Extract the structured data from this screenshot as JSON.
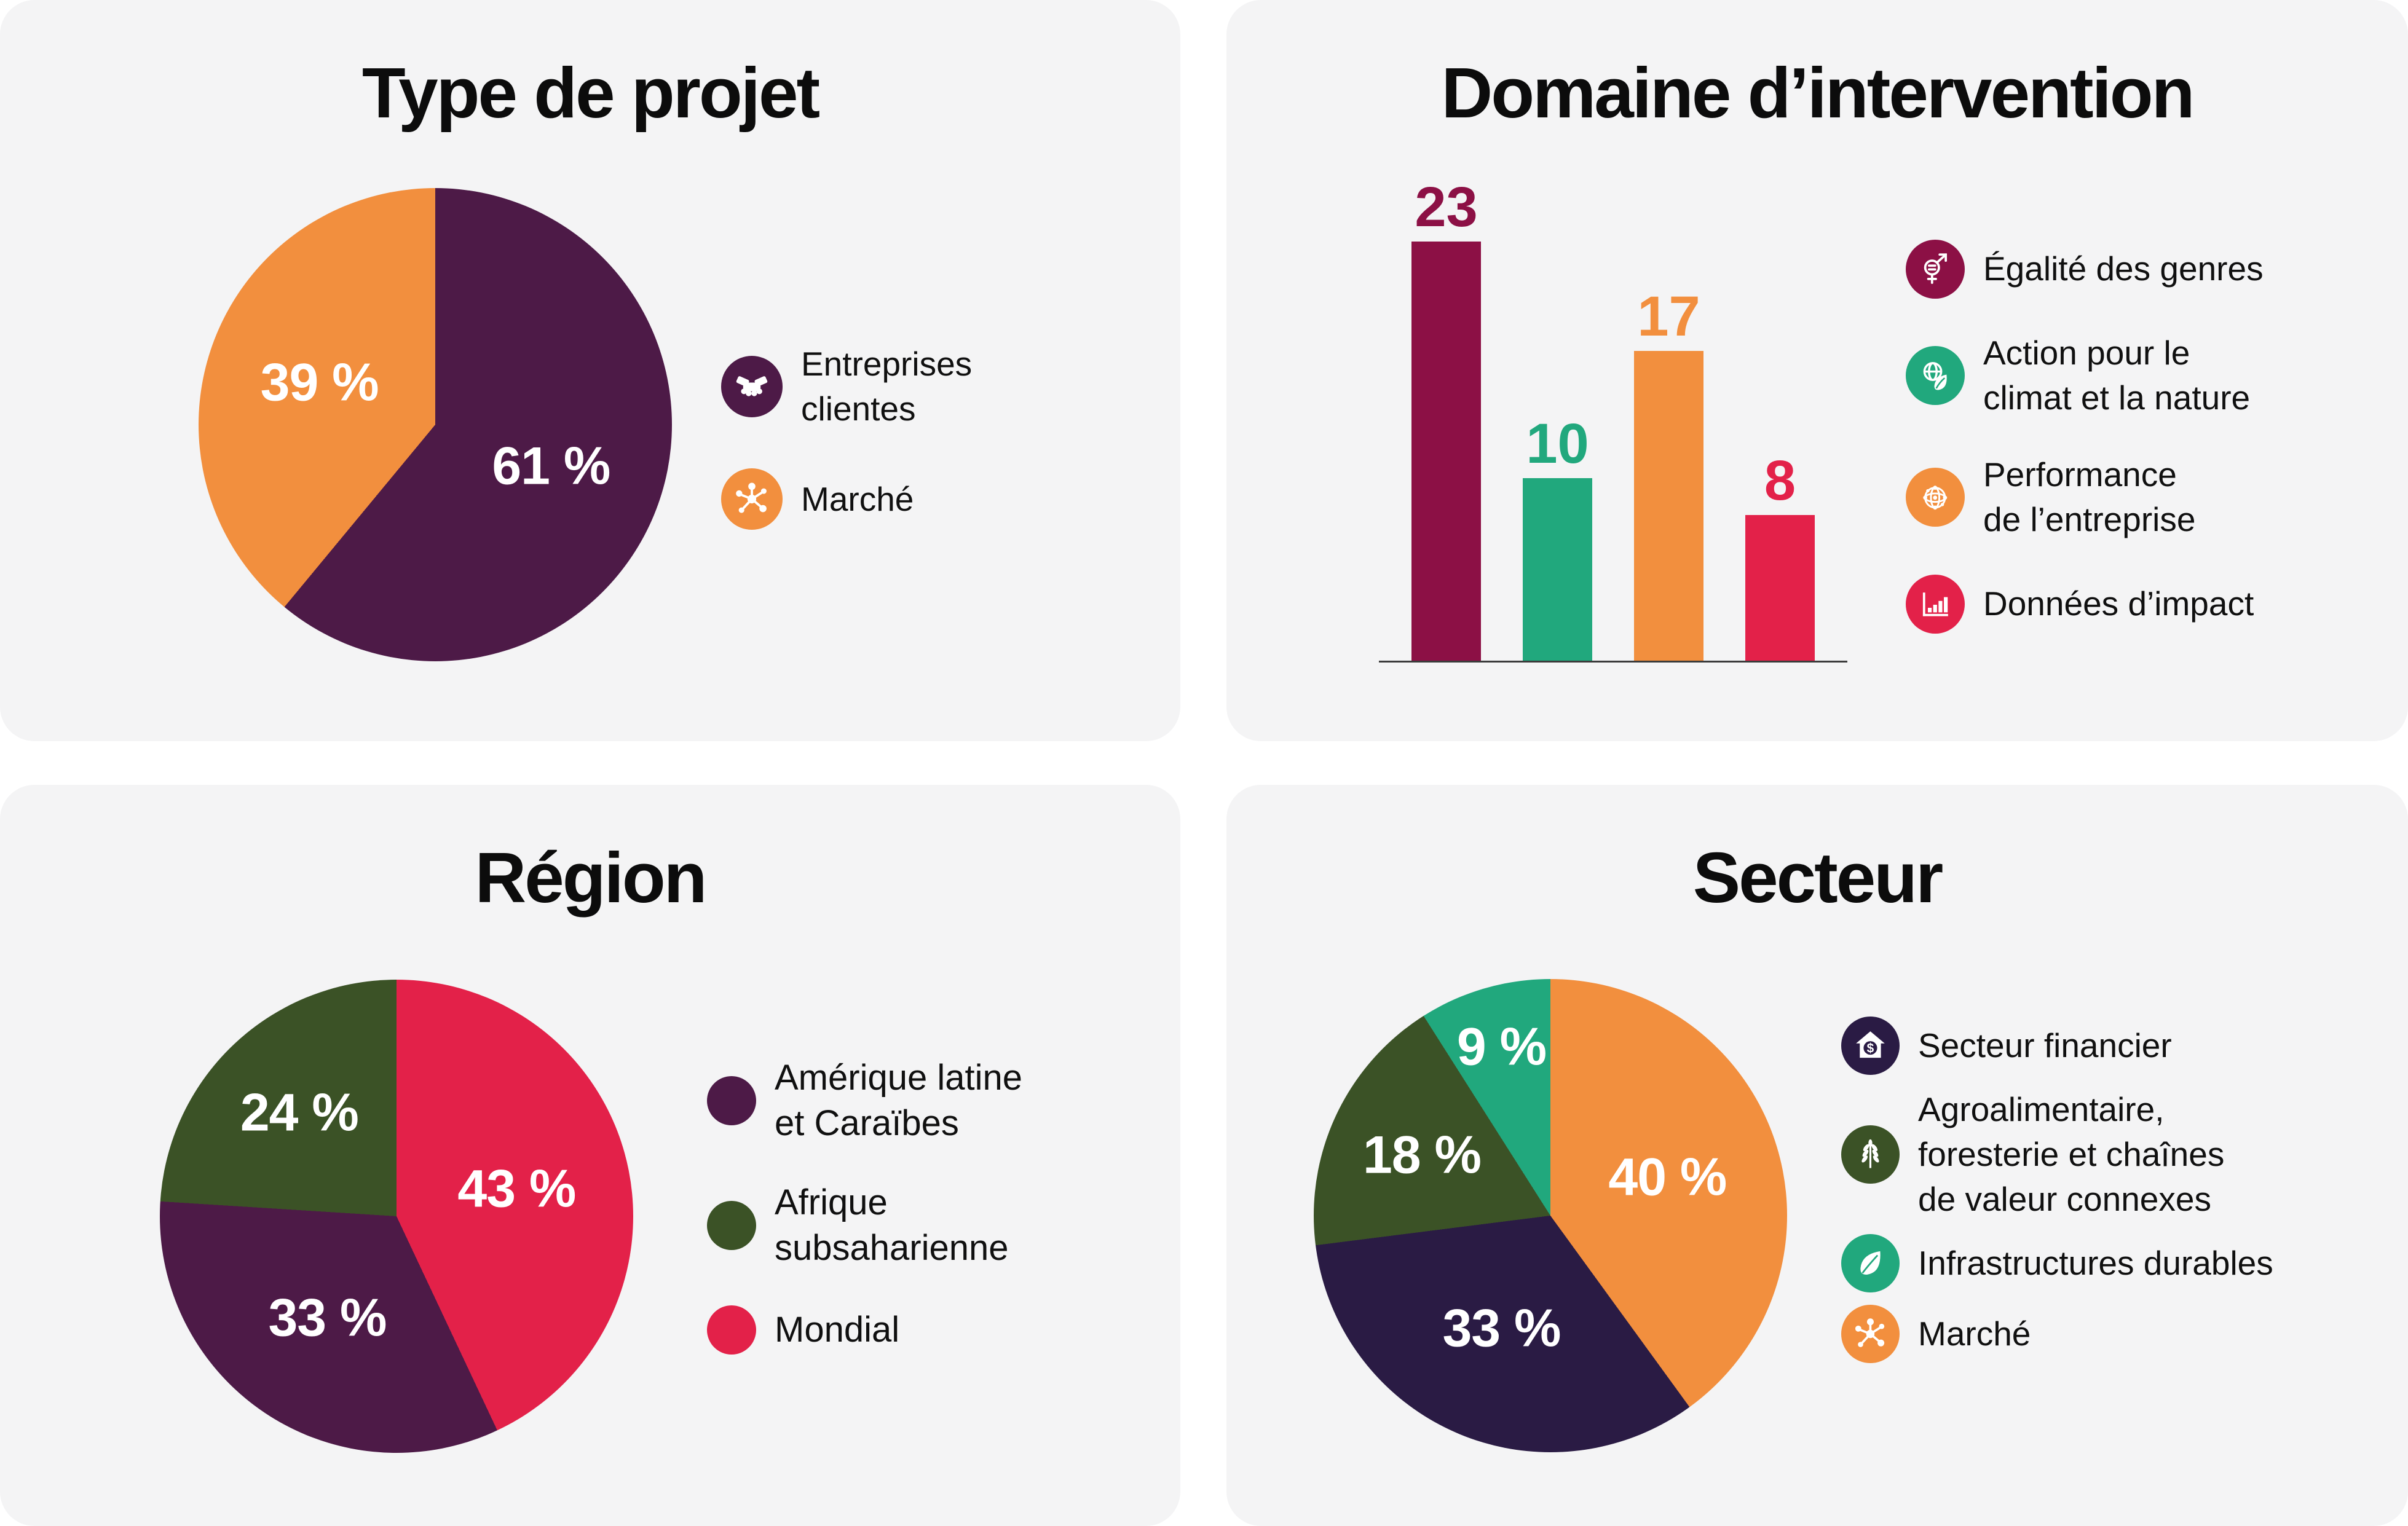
{
  "colors": {
    "page_bg": "#FFFFFF",
    "panel_bg": "#F4F4F5",
    "text": "#101010",
    "axis": "#3B3B3B",
    "plum": "#4D1A47",
    "orange": "#F28F3E",
    "maroon": "#8C1045",
    "teal": "#21A87D",
    "crimson": "#E32149",
    "dark_green": "#3B5226",
    "dark_navy": "#2A1B44"
  },
  "panels": [
    {
      "title": "Type de projet",
      "legend": [
        {
          "label": "Entreprises\nclientes",
          "icon": "handshake-icon",
          "color": "#4D1A47"
        },
        {
          "label": "Marché",
          "icon": "network-icon",
          "color": "#F28F3E"
        }
      ]
    },
    {
      "title": "Domaine d’intervention",
      "legend": [
        {
          "label": "Égalité des genres",
          "icon": "gender-equality-icon",
          "color": "#8C1045"
        },
        {
          "label": "Action pour le\nclimat et la nature",
          "icon": "globe-leaf-icon",
          "color": "#21A87D"
        },
        {
          "label": "Performance\nde l’entreprise",
          "icon": "globe-network-icon",
          "color": "#F28F3E"
        },
        {
          "label": "Données d’impact",
          "icon": "bar-chart-icon",
          "color": "#E32149"
        }
      ]
    },
    {
      "title": "Région",
      "legend": [
        {
          "label": "Amérique latine\net Caraïbes",
          "icon": "dot",
          "color": "#4D1A47"
        },
        {
          "label": "Afrique\nsubsaharienne",
          "icon": "dot",
          "color": "#3B5226"
        },
        {
          "label": "Mondial",
          "icon": "dot",
          "color": "#E32149"
        }
      ]
    },
    {
      "title": "Secteur",
      "legend": [
        {
          "label": "Secteur financier",
          "icon": "house-dollar-icon",
          "color": "#2A1B44"
        },
        {
          "label": "Agroalimentaire,\nforesterie et chaînes\nde valeur connexes",
          "icon": "wheat-icon",
          "color": "#3B5226"
        },
        {
          "label": "Infrastructures durables",
          "icon": "leaf-icon",
          "color": "#21A87D"
        },
        {
          "label": "Marché",
          "icon": "network-icon",
          "color": "#F28F3E"
        }
      ]
    }
  ],
  "chart_data": [
    {
      "type": "pie",
      "title": "Type de projet",
      "start_angle_deg": 0,
      "direction": "clockwise",
      "legend_position": "right",
      "slices": [
        {
          "label": "Entreprises clientes",
          "value": 61,
          "display": "61 %",
          "color": "#4D1A47"
        },
        {
          "label": "Marché",
          "value": 39,
          "display": "39 %",
          "color": "#F28F3E"
        }
      ]
    },
    {
      "type": "bar",
      "title": "Domaine d’intervention",
      "ylim": [
        0,
        23
      ],
      "grid": false,
      "legend_position": "right",
      "bars": [
        {
          "label": "Égalité des genres",
          "value": 23,
          "display": "23",
          "color": "#8C1045"
        },
        {
          "label": "Action pour le climat et la nature",
          "value": 10,
          "display": "10",
          "color": "#21A87D"
        },
        {
          "label": "Performance de l’entreprise",
          "value": 17,
          "display": "17",
          "color": "#F28F3E"
        },
        {
          "label": "Données d’impact",
          "value": 8,
          "display": "8",
          "color": "#E32149"
        }
      ]
    },
    {
      "type": "pie",
      "title": "Région",
      "start_angle_deg": 0,
      "direction": "clockwise",
      "legend_position": "right",
      "slices": [
        {
          "label": "Mondial",
          "value": 43,
          "display": "43 %",
          "color": "#E32149"
        },
        {
          "label": "Amérique latine et Caraïbes",
          "value": 33,
          "display": "33 %",
          "color": "#4D1A47"
        },
        {
          "label": "Afrique subsaharienne",
          "value": 24,
          "display": "24 %",
          "color": "#3B5226"
        }
      ]
    },
    {
      "type": "pie",
      "title": "Secteur",
      "start_angle_deg": 0,
      "direction": "clockwise",
      "legend_position": "right",
      "slices": [
        {
          "label": "Marché",
          "value": 40,
          "display": "40 %",
          "color": "#F28F3E"
        },
        {
          "label": "Secteur financier",
          "value": 33,
          "display": "33 %",
          "color": "#2A1B44"
        },
        {
          "label": "Agroalimentaire, foresterie et chaînes de valeur connexes",
          "value": 18,
          "display": "18 %",
          "color": "#3B5226"
        },
        {
          "label": "Infrastructures durables",
          "value": 9,
          "display": "9 %",
          "color": "#21A87D"
        }
      ]
    }
  ]
}
